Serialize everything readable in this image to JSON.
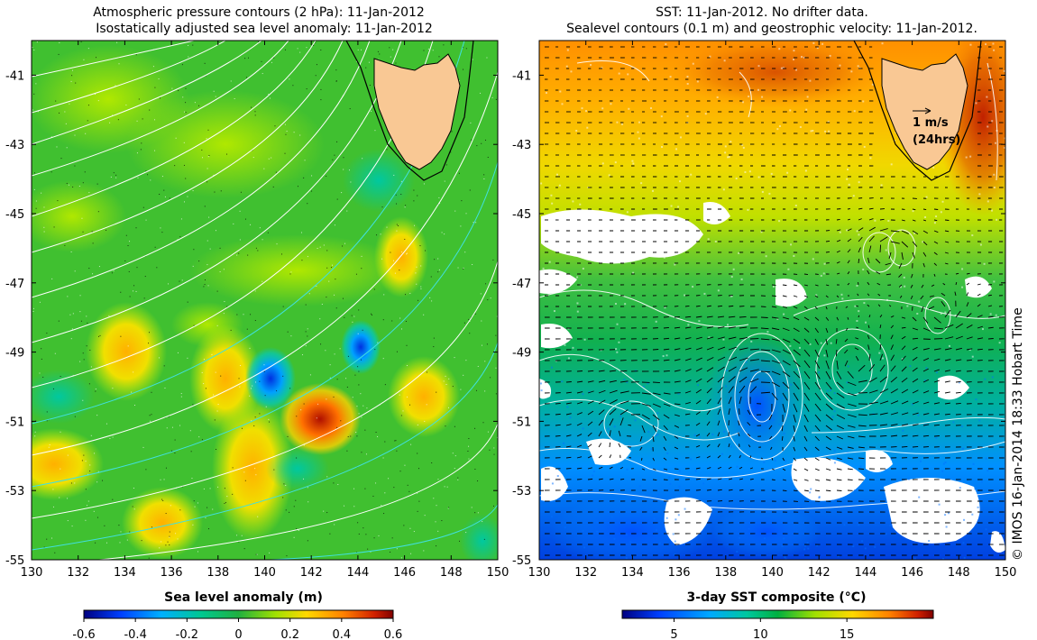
{
  "left_panel": {
    "title_line1": "Atmospheric pressure contours (2 hPa): 11-Jan-2012",
    "title_line2": "Isostatically adjusted sea level anomaly: 11-Jan-2012",
    "colorbar_label": "Sea level anomaly (m)",
    "colorbar_ticks": [
      "-0.6",
      "-0.4",
      "-0.2",
      "0",
      "0.2",
      "0.4",
      "0.6"
    ]
  },
  "right_panel": {
    "title_line1": "SST: 11-Jan-2012. No drifter data.",
    "title_line2": "Sealevel contours (0.1 m) and geostrophic velocity: 11-Jan-2012.",
    "colorbar_label": "3-day SST composite (°C)",
    "colorbar_ticks": [
      "5",
      "10",
      "15"
    ],
    "scale_arrow_label": "1 m/s",
    "scale_arrow_sublabel": "(24hrs)"
  },
  "axes": {
    "x_ticks": [
      "130",
      "132",
      "134",
      "136",
      "138",
      "140",
      "142",
      "144",
      "146",
      "148",
      "150"
    ],
    "y_ticks": [
      "-41",
      "-43",
      "-45",
      "-47",
      "-49",
      "-51",
      "-53",
      "-55"
    ]
  },
  "credit": "© IMOS 16-Jan-2014 18:33 Hobart Time",
  "colors": {
    "land": "#f9c894",
    "sla_scale": [
      "#000080",
      "#0040ff",
      "#00b0ff",
      "#00d08a",
      "#00b030",
      "#60d000",
      "#c8f000",
      "#ffd000",
      "#ff8000",
      "#e03000",
      "#900000"
    ],
    "sst_scale": [
      "#000080",
      "#0050ff",
      "#00a0ff",
      "#00c0a0",
      "#00b040",
      "#80d000",
      "#e0e000",
      "#ffb000",
      "#ff7000",
      "#d02000",
      "#800000"
    ]
  },
  "map_extent": {
    "lon": [
      130,
      150
    ],
    "lat": [
      -55,
      -40
    ]
  }
}
